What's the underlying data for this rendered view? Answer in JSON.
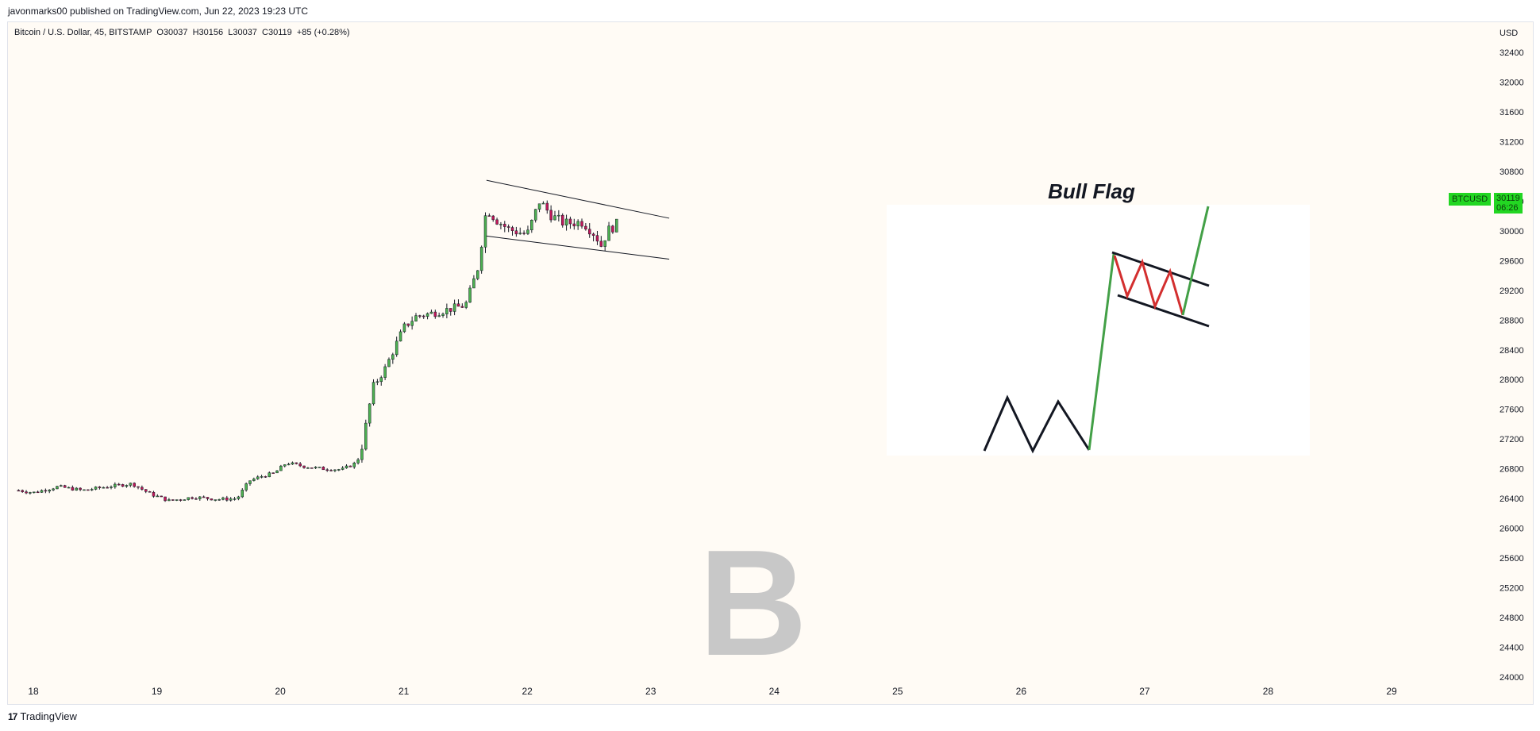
{
  "header": {
    "published": "javonmarks00 published on TradingView.com, Jun 22, 2023 19:23 UTC"
  },
  "legend": {
    "text": "Bitcoin / U.S. Dollar, 45, BITSTAMP  O30037  H30156  L30037  C30119  +85 (+0.28%)"
  },
  "price_tag": {
    "symbol": "BTCUSD",
    "price": "30119",
    "countdown": "06:26"
  },
  "inset": {
    "title": "Bull Flag"
  },
  "watermark": {
    "glyph": "B"
  },
  "footer": {
    "logo_glyph": "17",
    "brand": "TradingView"
  },
  "colors": {
    "up": "#4caf50",
    "down": "#c2185b",
    "last_price": "#22d622",
    "background": "#fffbf5"
  },
  "chart_data": {
    "type": "candlestick",
    "title": "Bitcoin / U.S. Dollar, 45, BITSTAMP",
    "xlabel": "",
    "ylabel": "USD",
    "y_unit": "USD",
    "ylim": [
      23800,
      32700
    ],
    "y_ticks": [
      24000,
      24400,
      24800,
      25200,
      25600,
      26000,
      26400,
      26800,
      27200,
      27600,
      28000,
      28400,
      28800,
      29200,
      29600,
      30000,
      30400,
      30800,
      31200,
      31600,
      32000,
      32400
    ],
    "x_ticks": [
      "18",
      "19",
      "20",
      "21",
      "22",
      "23",
      "24",
      "25",
      "26",
      "27",
      "28",
      "29"
    ],
    "x_range_days": [
      17.87,
      29.9
    ],
    "ohlc_anchor_close": [
      [
        17.88,
        26510
      ],
      [
        18.0,
        26480
      ],
      [
        18.2,
        26560
      ],
      [
        18.4,
        26510
      ],
      [
        18.6,
        26560
      ],
      [
        18.8,
        26600
      ],
      [
        18.95,
        26460
      ],
      [
        19.1,
        26370
      ],
      [
        19.3,
        26420
      ],
      [
        19.5,
        26390
      ],
      [
        19.65,
        26400
      ],
      [
        19.75,
        26640
      ],
      [
        19.85,
        26700
      ],
      [
        19.95,
        26740
      ],
      [
        20.05,
        26880
      ],
      [
        20.2,
        26830
      ],
      [
        20.35,
        26800
      ],
      [
        20.5,
        26790
      ],
      [
        20.6,
        26870
      ],
      [
        20.65,
        27000
      ],
      [
        20.75,
        27900
      ],
      [
        20.85,
        28150
      ],
      [
        21.0,
        28700
      ],
      [
        21.1,
        28850
      ],
      [
        21.25,
        28900
      ],
      [
        21.4,
        28960
      ],
      [
        21.5,
        29000
      ],
      [
        21.6,
        29500
      ],
      [
        21.67,
        30300
      ],
      [
        21.75,
        30150
      ],
      [
        21.85,
        30020
      ],
      [
        22.0,
        29950
      ],
      [
        22.1,
        30400
      ],
      [
        22.2,
        30200
      ],
      [
        22.3,
        30100
      ],
      [
        22.45,
        30120
      ],
      [
        22.55,
        29950
      ],
      [
        22.6,
        29800
      ],
      [
        22.65,
        30000
      ],
      [
        22.75,
        30119
      ]
    ],
    "last_price": 30119,
    "trendlines": [
      {
        "name": "upper",
        "from": [
          21.67,
          30680
        ],
        "to": [
          23.15,
          30170
        ]
      },
      {
        "name": "lower",
        "from": [
          21.67,
          29930
        ],
        "to": [
          23.15,
          29620
        ]
      }
    ],
    "grid": false,
    "legend": "top-left"
  }
}
